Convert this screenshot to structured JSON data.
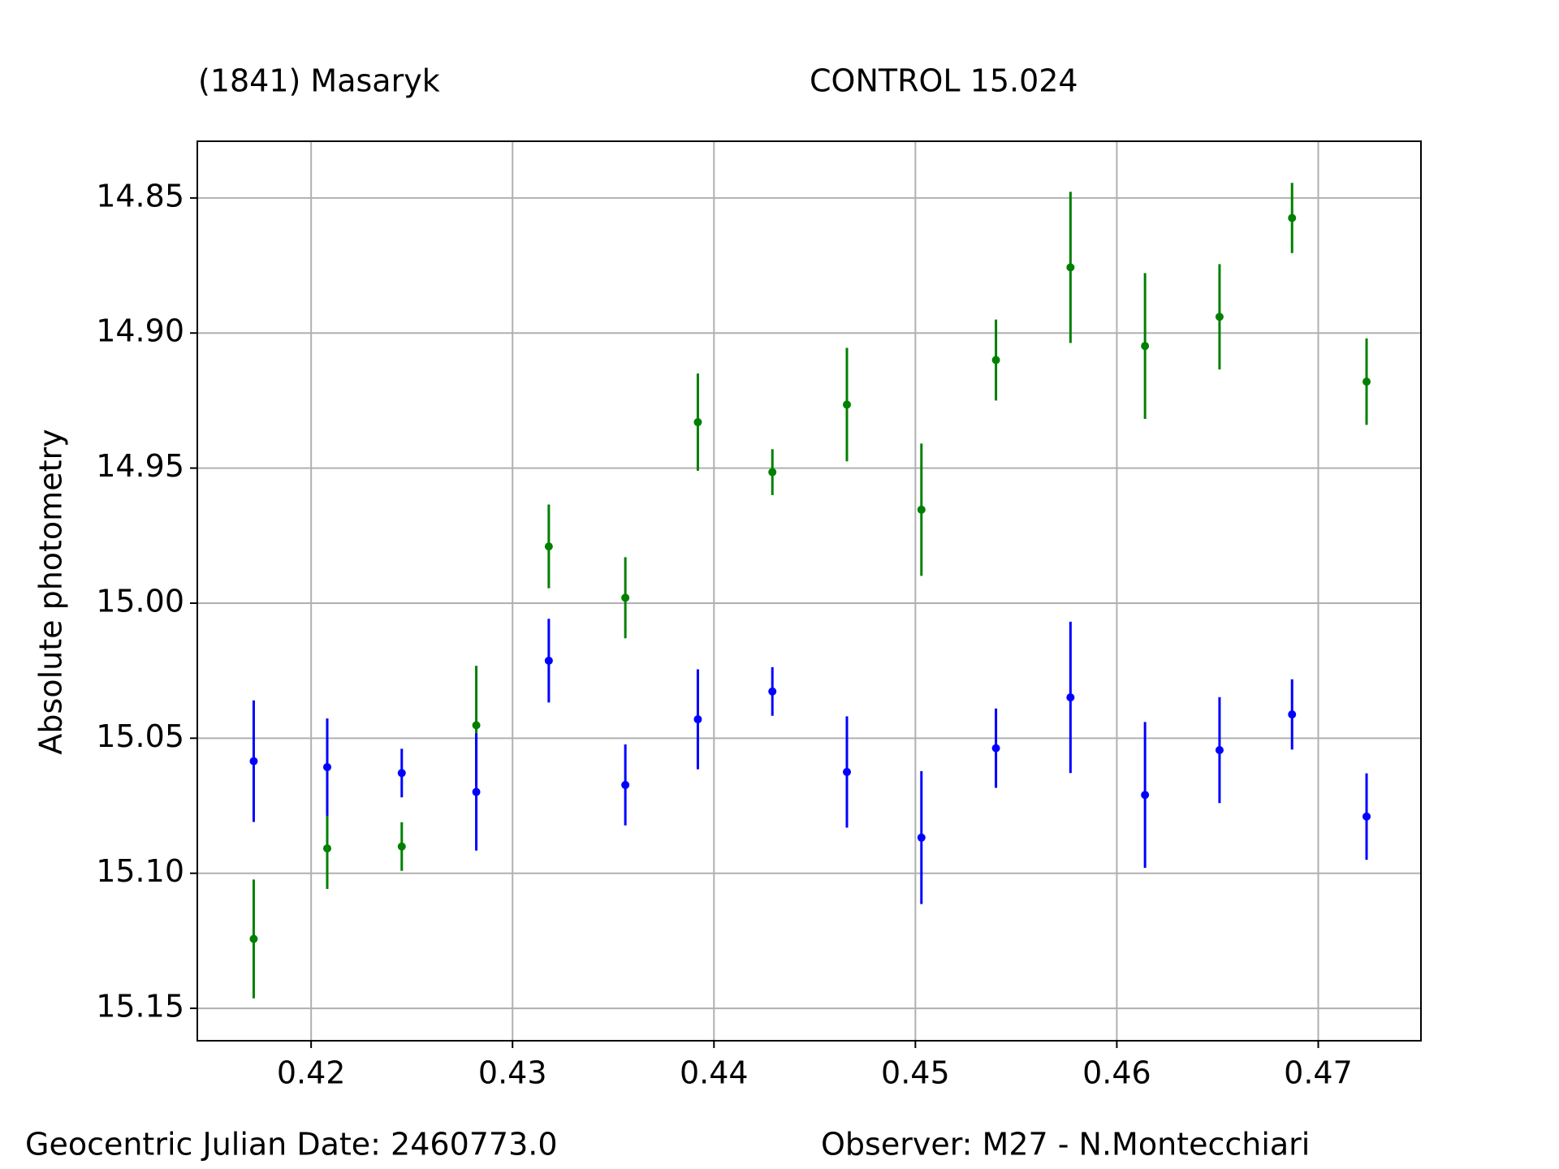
{
  "chart_data": {
    "type": "errorbar",
    "y_label": "Absolute photometry",
    "annotations": [
      "Geocentric Julian Date: 2460773.0",
      "Observer: M27 - N.Montecchiari"
    ],
    "x": [
      0.41715,
      0.4208,
      0.4245,
      0.4282,
      0.4318,
      0.4356,
      0.4392,
      0.4429,
      0.4466,
      0.4503,
      0.454,
      0.4577,
      0.4614,
      0.4651,
      0.4687,
      0.4724
    ],
    "series": [
      {
        "name": "(1841) Masaryk",
        "color": "#008000",
        "values": [
          15.1243,
          15.0908,
          15.0901,
          15.0452,
          14.979,
          14.998,
          14.933,
          14.9515,
          14.9265,
          14.9654,
          14.91,
          14.8757,
          14.9048,
          14.894,
          14.8574,
          14.918
        ],
        "errors": [
          0.022,
          0.015,
          0.009,
          0.022,
          0.0155,
          0.015,
          0.018,
          0.0085,
          0.021,
          0.0245,
          0.015,
          0.028,
          0.027,
          0.0195,
          0.013,
          0.016
        ]
      },
      {
        "name": "CONTROL 15.024",
        "color": "#0000ff",
        "values": [
          15.0585,
          15.0607,
          15.0629,
          15.0699,
          15.0213,
          15.0673,
          15.043,
          15.0327,
          15.0625,
          15.0868,
          15.0537,
          15.0349,
          15.071,
          15.0544,
          15.0412,
          15.079
        ],
        "errors": [
          0.0225,
          0.018,
          0.009,
          0.0217,
          0.0155,
          0.015,
          0.0185,
          0.009,
          0.0206,
          0.0246,
          0.0147,
          0.028,
          0.027,
          0.0196,
          0.013,
          0.016
        ]
      }
    ],
    "xlim": [
      0.41435,
      0.4751
    ],
    "xticks": [
      0.42,
      0.43,
      0.44,
      0.45,
      0.46,
      0.47
    ],
    "ylim": [
      15.162,
      14.829
    ],
    "yticks": [
      {
        "value": 14.85,
        "label": "14.85"
      },
      {
        "value": 14.9,
        "label": "14.90"
      },
      {
        "value": 14.95,
        "label": "14.95"
      },
      {
        "value": 15.0,
        "label": "15.00"
      },
      {
        "value": 15.05,
        "label": "15.05"
      },
      {
        "value": 15.1,
        "label": "15.10"
      },
      {
        "value": 15.15,
        "label": "15.15"
      }
    ],
    "grid": true
  }
}
